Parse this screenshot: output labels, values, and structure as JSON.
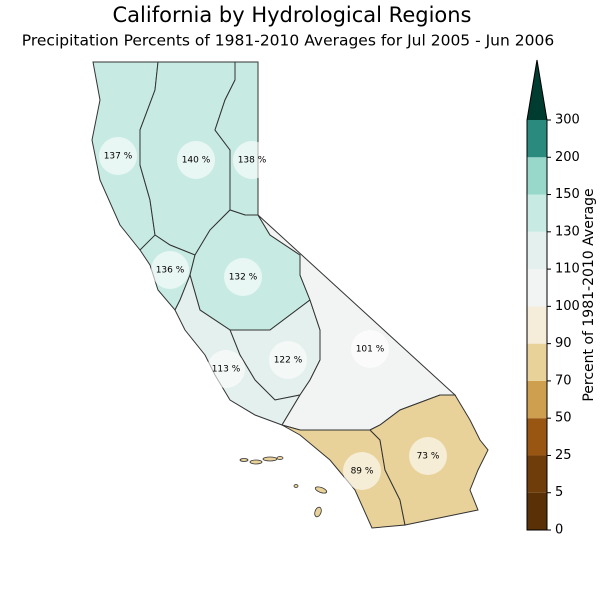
{
  "chart_data": {
    "type": "choropleth",
    "title": "California by Hydrological Regions",
    "subtitle": "Precipitation Percents of 1981-2010 Averages for Jul 2005 - Jun 2006",
    "values": [
      137,
      140,
      138,
      136,
      132,
      122,
      113,
      101,
      89,
      73
    ],
    "value_labels": [
      "137 %",
      "140 %",
      "138 %",
      "136 %",
      "132 %",
      "122 %",
      "113 %",
      "101 %",
      "89 %",
      "73 %"
    ],
    "colorbar": {
      "label": "Percent of 1981-2010 Average",
      "ticks": [
        0,
        5,
        25,
        50,
        70,
        90,
        100,
        110,
        130,
        150,
        200,
        300
      ],
      "colors": [
        "#5a3106",
        "#6e3d0a",
        "#995613",
        "#cf9f50",
        "#e8d29a",
        "#f5ecd9",
        "#f2f4f3",
        "#e4f0ee",
        "#c7ebe3",
        "#98d8cb",
        "#2a8a7e"
      ],
      "extend_color": "#003c30"
    }
  }
}
